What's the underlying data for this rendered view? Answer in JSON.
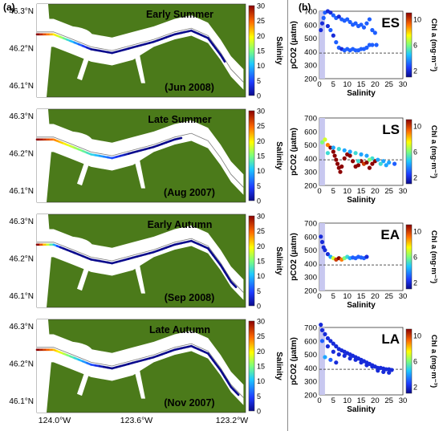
{
  "figure": {
    "panel_a_label": "(a)",
    "panel_b_label": "(b)",
    "colors": {
      "land": "#4b7a1a",
      "water": "#ffffff",
      "channel": "#7a7a7a",
      "shade": "#c8c8f0",
      "reference_line": "#555555"
    }
  },
  "maps": [
    {
      "title": "Early Summer",
      "date": "(Jun 2008)",
      "salinity_extent": 0.25,
      "freshwater_extent": 0.88
    },
    {
      "title": "Late Summer",
      "date": "(Aug 2007)",
      "salinity_extent": 0.4,
      "freshwater_extent": 0.62
    },
    {
      "title": "Early Autumn",
      "date": "(Sep 2008)",
      "salinity_extent": 0.12,
      "freshwater_extent": 0.95
    },
    {
      "title": "Late Autumn",
      "date": "(Nov 2007)",
      "salinity_extent": 0.3,
      "freshwater_extent": 0.97
    }
  ],
  "map_axes": {
    "y_ticks": [
      "46.3°N",
      "46.2°N",
      "46.1°N"
    ],
    "x_ticks": [
      "124.0°W",
      "123.6°W",
      "123.2°W"
    ]
  },
  "salinity_colorbar": {
    "label": "Salinity",
    "ticks": [
      "30",
      "25",
      "20",
      "15",
      "10",
      "5",
      "0"
    ]
  },
  "chl_colorbar": {
    "label": "Chl a (mg·m⁻³)",
    "ticks": [
      "10",
      "6",
      "2"
    ]
  },
  "chart_data": [
    {
      "type": "scatter",
      "label": "ES",
      "xlabel": "Salinity",
      "ylabel": "pCO2 (µatm)",
      "xlim": [
        0,
        30
      ],
      "ylim": [
        200,
        700
      ],
      "x_ticks": [
        0,
        5,
        10,
        15,
        20,
        25,
        30
      ],
      "y_ticks": [
        200,
        300,
        400,
        500,
        600,
        700
      ],
      "reference_line": 390,
      "shaded_salinity": [
        0,
        2
      ],
      "color_scale": "chl_a",
      "points": [
        [
          0.5,
          560,
          2
        ],
        [
          1,
          610,
          2
        ],
        [
          1.5,
          650,
          3
        ],
        [
          2,
          690,
          3
        ],
        [
          3,
          700,
          2
        ],
        [
          4,
          690,
          2
        ],
        [
          5,
          670,
          3
        ],
        [
          6,
          650,
          3
        ],
        [
          7,
          660,
          2
        ],
        [
          8,
          640,
          3
        ],
        [
          9,
          630,
          3
        ],
        [
          10,
          640,
          3
        ],
        [
          11,
          620,
          3
        ],
        [
          12,
          600,
          3
        ],
        [
          13,
          610,
          3
        ],
        [
          14,
          590,
          3
        ],
        [
          15,
          600,
          3
        ],
        [
          16,
          580,
          3
        ],
        [
          17,
          610,
          3
        ],
        [
          18,
          640,
          3
        ],
        [
          19,
          560,
          3
        ],
        [
          20,
          540,
          3
        ],
        [
          20.5,
          450,
          3
        ],
        [
          3,
          590,
          2
        ],
        [
          4,
          560,
          3
        ],
        [
          5,
          520,
          2
        ],
        [
          6,
          470,
          3
        ],
        [
          7,
          430,
          3
        ],
        [
          8,
          420,
          2
        ],
        [
          9,
          410,
          3
        ],
        [
          10,
          420,
          3
        ],
        [
          11,
          410,
          3
        ],
        [
          12,
          420,
          3
        ],
        [
          13,
          410,
          3
        ],
        [
          14,
          410,
          3
        ],
        [
          15,
          420,
          3
        ],
        [
          16,
          420,
          3
        ],
        [
          17,
          430,
          3
        ],
        [
          18,
          450,
          3
        ],
        [
          19,
          450,
          3
        ]
      ]
    },
    {
      "type": "scatter",
      "label": "LS",
      "xlabel": "Salinity",
      "ylabel": "pCO2 (µatm)",
      "xlim": [
        0,
        30
      ],
      "ylim": [
        200,
        700
      ],
      "x_ticks": [
        0,
        5,
        10,
        15,
        20,
        25,
        30
      ],
      "y_ticks": [
        200,
        300,
        400,
        500,
        600,
        700
      ],
      "reference_line": 390,
      "shaded_salinity": [
        0,
        2
      ],
      "color_scale": "chl_a",
      "points": [
        [
          1,
          520,
          6
        ],
        [
          2,
          540,
          7
        ],
        [
          3,
          500,
          9
        ],
        [
          4,
          480,
          11
        ],
        [
          5,
          450,
          11
        ],
        [
          5.5,
          420,
          11
        ],
        [
          6,
          390,
          11
        ],
        [
          6.5,
          360,
          11
        ],
        [
          7,
          330,
          11
        ],
        [
          7.5,
          300,
          11
        ],
        [
          8,
          340,
          11
        ],
        [
          9,
          400,
          11
        ],
        [
          10,
          430,
          11
        ],
        [
          11,
          420,
          11
        ],
        [
          12,
          380,
          11
        ],
        [
          13,
          340,
          11
        ],
        [
          14,
          350,
          11
        ],
        [
          15,
          380,
          11
        ],
        [
          16,
          360,
          10
        ],
        [
          17,
          370,
          11
        ],
        [
          18,
          330,
          11
        ],
        [
          19,
          360,
          11
        ],
        [
          20,
          380,
          11
        ],
        [
          3,
          440,
          5
        ],
        [
          5,
          480,
          4
        ],
        [
          7,
          470,
          5
        ],
        [
          9,
          460,
          4
        ],
        [
          11,
          450,
          4
        ],
        [
          13,
          440,
          5
        ],
        [
          15,
          430,
          4
        ],
        [
          17,
          420,
          4
        ],
        [
          19,
          400,
          5
        ],
        [
          21,
          390,
          4
        ],
        [
          23,
          380,
          4
        ],
        [
          25,
          370,
          4
        ],
        [
          27,
          360,
          3
        ],
        [
          14,
          380,
          5
        ],
        [
          18,
          390,
          6
        ],
        [
          22,
          360,
          5
        ],
        [
          24,
          350,
          4
        ]
      ]
    },
    {
      "type": "scatter",
      "label": "EA",
      "xlabel": "Salinity",
      "ylabel": "pCO2 (µatm)",
      "xlim": [
        0,
        30
      ],
      "ylim": [
        200,
        700
      ],
      "x_ticks": [
        0,
        5,
        10,
        15,
        20,
        25,
        30
      ],
      "y_ticks": [
        200,
        300,
        400,
        500,
        600,
        700
      ],
      "reference_line": 390,
      "shaded_salinity": [
        0,
        2
      ],
      "color_scale": "chl_a",
      "points": [
        [
          0.5,
          600,
          2
        ],
        [
          1,
          560,
          2
        ],
        [
          1.5,
          520,
          2
        ],
        [
          2,
          500,
          2
        ],
        [
          3,
          470,
          2
        ],
        [
          4,
          450,
          4
        ],
        [
          5,
          440,
          7
        ],
        [
          6,
          430,
          10
        ],
        [
          7,
          440,
          11
        ],
        [
          8,
          430,
          9
        ],
        [
          9,
          440,
          6
        ],
        [
          10,
          450,
          5
        ],
        [
          11,
          440,
          4
        ],
        [
          12,
          445,
          3
        ],
        [
          13,
          440,
          3
        ],
        [
          14,
          450,
          3
        ],
        [
          15,
          445,
          3
        ],
        [
          16,
          440,
          3
        ],
        [
          17,
          450,
          2
        ]
      ]
    },
    {
      "type": "scatter",
      "label": "LA",
      "xlabel": "Salinity",
      "ylabel": "pCO2 (µatm)",
      "xlim": [
        0,
        30
      ],
      "ylim": [
        200,
        700
      ],
      "x_ticks": [
        0,
        5,
        10,
        15,
        20,
        25,
        30
      ],
      "y_ticks": [
        200,
        300,
        400,
        500,
        600,
        700
      ],
      "reference_line": 390,
      "shaded_salinity": [
        0,
        2
      ],
      "color_scale": "chl_a",
      "points": [
        [
          0.5,
          720,
          2
        ],
        [
          1,
          680,
          2
        ],
        [
          2,
          650,
          2
        ],
        [
          3,
          620,
          2
        ],
        [
          4,
          600,
          2
        ],
        [
          5,
          580,
          2
        ],
        [
          6,
          560,
          2
        ],
        [
          7,
          540,
          2
        ],
        [
          8,
          530,
          2
        ],
        [
          9,
          520,
          2
        ],
        [
          10,
          510,
          2
        ],
        [
          11,
          500,
          2
        ],
        [
          12,
          490,
          2
        ],
        [
          13,
          480,
          2
        ],
        [
          14,
          470,
          2
        ],
        [
          15,
          460,
          2
        ],
        [
          16,
          450,
          2
        ],
        [
          17,
          440,
          2
        ],
        [
          18,
          430,
          2
        ],
        [
          19,
          420,
          2
        ],
        [
          20,
          410,
          2
        ],
        [
          21,
          400,
          2
        ],
        [
          22,
          400,
          2
        ],
        [
          23,
          395,
          2
        ],
        [
          24,
          390,
          2
        ],
        [
          25,
          390,
          2
        ],
        [
          26,
          385,
          2
        ],
        [
          1,
          600,
          3
        ],
        [
          3,
          560,
          2
        ],
        [
          5,
          520,
          2
        ],
        [
          7,
          500,
          2
        ],
        [
          9,
          490,
          2
        ],
        [
          11,
          470,
          2
        ],
        [
          13,
          460,
          2
        ],
        [
          15,
          440,
          2
        ],
        [
          17,
          420,
          2
        ],
        [
          19,
          410,
          2
        ],
        [
          21,
          380,
          2
        ],
        [
          23,
          370,
          2
        ],
        [
          25,
          365,
          2
        ],
        [
          2,
          480,
          4
        ],
        [
          4,
          460,
          3
        ],
        [
          6,
          440,
          2
        ]
      ]
    }
  ]
}
